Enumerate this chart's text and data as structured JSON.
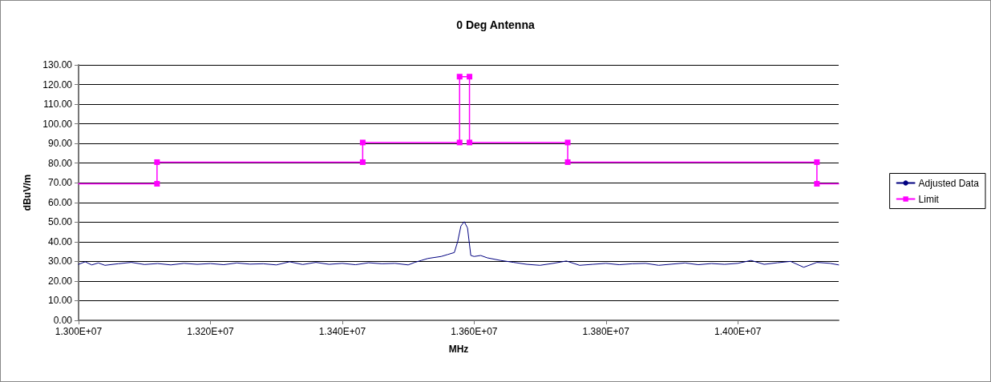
{
  "chart_data": {
    "type": "line",
    "title": "0 Deg Antenna",
    "xlabel": "MHz",
    "ylabel": "dBuV/m",
    "xlim": [
      13000000,
      14153000
    ],
    "xticks": [
      {
        "value": 13000000,
        "label": "1.300E+07"
      },
      {
        "value": 13200000,
        "label": "1.320E+07"
      },
      {
        "value": 13400000,
        "label": "1.340E+07"
      },
      {
        "value": 13600000,
        "label": "1.360E+07"
      },
      {
        "value": 13800000,
        "label": "1.380E+07"
      },
      {
        "value": 14000000,
        "label": "1.400E+07"
      }
    ],
    "ylim": [
      0,
      130
    ],
    "yticks": [
      {
        "value": 0,
        "label": "0.00"
      },
      {
        "value": 10,
        "label": "10.00"
      },
      {
        "value": 20,
        "label": "20.00"
      },
      {
        "value": 30,
        "label": "30.00"
      },
      {
        "value": 40,
        "label": "40.00"
      },
      {
        "value": 50,
        "label": "50.00"
      },
      {
        "value": 60,
        "label": "60.00"
      },
      {
        "value": 70,
        "label": "70.00"
      },
      {
        "value": 80,
        "label": "80.00"
      },
      {
        "value": 90,
        "label": "90.00"
      },
      {
        "value": 100,
        "label": "100.00"
      },
      {
        "value": 110,
        "label": "110.00"
      },
      {
        "value": 120,
        "label": "120.00"
      },
      {
        "value": 130,
        "label": "130.00"
      }
    ],
    "grid": "y",
    "legend": "right",
    "series": [
      {
        "name": "Adjusted Data",
        "color": "#000080",
        "marker": "none",
        "x": [
          13000000,
          13010000,
          13020000,
          13030000,
          13040000,
          13060000,
          13080000,
          13100000,
          13120000,
          13140000,
          13160000,
          13180000,
          13200000,
          13220000,
          13240000,
          13260000,
          13280000,
          13300000,
          13320000,
          13340000,
          13360000,
          13380000,
          13400000,
          13420000,
          13440000,
          13460000,
          13480000,
          13500000,
          13510000,
          13520000,
          13530000,
          13540000,
          13550000,
          13560000,
          13570000,
          13575000,
          13580000,
          13585000,
          13590000,
          13595000,
          13600000,
          13610000,
          13620000,
          13640000,
          13660000,
          13680000,
          13700000,
          13720000,
          13740000,
          13760000,
          13780000,
          13800000,
          13820000,
          13840000,
          13860000,
          13880000,
          13900000,
          13920000,
          13940000,
          13960000,
          13980000,
          14000000,
          14020000,
          14040000,
          14060000,
          14080000,
          14100000,
          14120000,
          14140000,
          14153000
        ],
        "values": [
          28.5,
          29.8,
          28.2,
          29.2,
          28.0,
          28.8,
          29.5,
          28.4,
          28.9,
          28.2,
          29.0,
          28.5,
          28.9,
          28.3,
          29.2,
          28.6,
          28.8,
          28.2,
          29.8,
          28.4,
          29.5,
          28.5,
          29.0,
          28.3,
          29.3,
          28.8,
          29.0,
          28.2,
          29.5,
          30.5,
          31.5,
          32.0,
          32.5,
          33.5,
          34.5,
          40.0,
          48.0,
          50.2,
          47.0,
          33.0,
          32.5,
          33.0,
          31.8,
          30.5,
          29.5,
          28.5,
          28.0,
          29.0,
          30.2,
          28.0,
          28.5,
          29.0,
          28.3,
          28.8,
          29.0,
          28.0,
          28.6,
          29.2,
          28.3,
          28.9,
          28.5,
          29.0,
          30.5,
          28.5,
          29.3,
          30.0,
          27.0,
          29.5,
          29.0,
          28.2
        ]
      },
      {
        "name": "Limit",
        "color": "#ff00ff",
        "marker": "square",
        "x": [
          13000000,
          13119000,
          13119000,
          13431000,
          13431000,
          13578000,
          13578000,
          13593000,
          13593000,
          13742000,
          13742000,
          14120000,
          14120000,
          14153000
        ],
        "values": [
          69.5,
          69.5,
          80.5,
          80.5,
          90.5,
          90.5,
          124.0,
          124.0,
          90.5,
          90.5,
          80.5,
          80.5,
          69.5,
          69.5
        ]
      }
    ]
  }
}
